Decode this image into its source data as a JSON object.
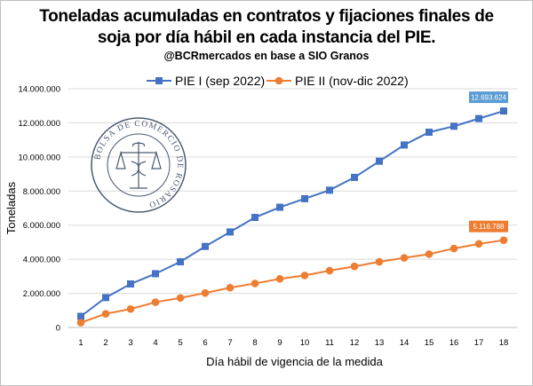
{
  "header": {
    "title_line1": "Toneladas acumuladas en contratos y fijaciones finales de",
    "title_line2": "soja por día hábil en cada instancia del PIE.",
    "subtitle": "@BCRmercados en base a SIO Granos"
  },
  "logo": {
    "text": "BOLSA DE COMERCIO DE ROSARIO",
    "color": "#4a5a70"
  },
  "chart_data": {
    "type": "line",
    "title": "Toneladas acumuladas en contratos y fijaciones finales de soja por día hábil en cada instancia del PIE.",
    "subtitle": "@BCRmercados en base a SIO Granos",
    "xlabel": "Día hábil de vigencia de la medida",
    "ylabel": "Toneladas",
    "x": [
      1,
      2,
      3,
      4,
      5,
      6,
      7,
      8,
      9,
      10,
      11,
      12,
      13,
      14,
      15,
      16,
      17,
      18
    ],
    "ylim": [
      0,
      14000000
    ],
    "yticks": [
      0,
      2000000,
      4000000,
      6000000,
      8000000,
      10000000,
      12000000,
      14000000
    ],
    "ytick_labels": [
      "0",
      "2.000.000",
      "4.000.000",
      "6.000.000",
      "8.000.000",
      "10.000.000",
      "12.000.000",
      "14.000.000"
    ],
    "grid": true,
    "legend_position": "top-center",
    "series": [
      {
        "name": "PIE I (sep 2022)",
        "color": "#4472c4",
        "marker": "square",
        "values": [
          650000,
          1750000,
          2550000,
          3150000,
          3850000,
          4750000,
          5600000,
          6450000,
          7050000,
          7550000,
          8050000,
          8800000,
          9750000,
          10700000,
          11450000,
          11800000,
          12250000,
          12693624
        ],
        "end_label": "12.693.624",
        "label_color": "#5b9bd5"
      },
      {
        "name": "PIE II (nov-dic 2022)",
        "color": "#ed7d31",
        "marker": "circle",
        "values": [
          280000,
          800000,
          1080000,
          1480000,
          1730000,
          2020000,
          2330000,
          2580000,
          2850000,
          3050000,
          3330000,
          3580000,
          3850000,
          4080000,
          4300000,
          4630000,
          4900000,
          5116788
        ],
        "end_label": "5.116.788",
        "label_color": "#ed7d31"
      }
    ]
  }
}
